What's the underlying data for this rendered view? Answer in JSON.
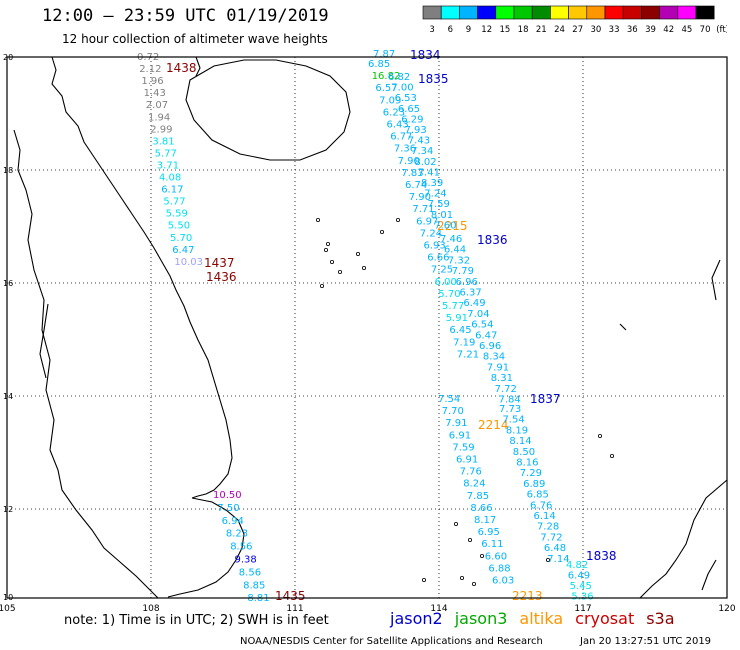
{
  "header": {
    "title": "12:00 – 23:59 UTC 01/19/2019",
    "subtitle": "12 hour collection of altimeter wave heights"
  },
  "legend": {
    "unit": "(ft)",
    "bins": [
      {
        "label": "3",
        "color": "#7f7f7f"
      },
      {
        "label": "6",
        "color": "#00ffff"
      },
      {
        "label": "9",
        "color": "#00b4ff"
      },
      {
        "label": "12",
        "color": "#0000ff"
      },
      {
        "label": "15",
        "color": "#00ff00"
      },
      {
        "label": "18",
        "color": "#00c800"
      },
      {
        "label": "21",
        "color": "#008c00"
      },
      {
        "label": "24",
        "color": "#ffff00"
      },
      {
        "label": "27",
        "color": "#ffc800"
      },
      {
        "label": "30",
        "color": "#ff9600"
      },
      {
        "label": "33",
        "color": "#ff0000"
      },
      {
        "label": "36",
        "color": "#c80000"
      },
      {
        "label": "39",
        "color": "#8c0000"
      },
      {
        "label": "42",
        "color": "#b400b4"
      },
      {
        "label": "45",
        "color": "#ff00ff"
      },
      {
        "label": "70",
        "color": "#000000"
      }
    ]
  },
  "axes": {
    "lon_labels": [
      "105",
      "108",
      "111",
      "114",
      "117",
      "120"
    ],
    "lat_labels": [
      "20",
      "18",
      "16",
      "14",
      "12",
      "10"
    ]
  },
  "tracks": [
    {
      "id": "1438",
      "label": "1438",
      "label_color": "#8b0000",
      "values": [
        {
          "v": "0.72",
          "c": "#808080"
        },
        {
          "v": "2.12",
          "c": "#808080"
        },
        {
          "v": "1.96",
          "c": "#808080"
        },
        {
          "v": "1.43",
          "c": "#808080"
        },
        {
          "v": "2.07",
          "c": "#808080"
        },
        {
          "v": "1.94",
          "c": "#808080"
        },
        {
          "v": "2.99",
          "c": "#808080"
        },
        {
          "v": "3.81",
          "c": "#00e0f0"
        },
        {
          "v": "5.77",
          "c": "#00e0f0"
        },
        {
          "v": "3.71",
          "c": "#00e0f0"
        },
        {
          "v": "4.08",
          "c": "#00e0f0"
        },
        {
          "v": "6.17",
          "c": "#00b4ff"
        },
        {
          "v": "5.77",
          "c": "#00e0f0"
        },
        {
          "v": "5.59",
          "c": "#00e0f0"
        },
        {
          "v": "5.50",
          "c": "#00e0f0"
        },
        {
          "v": "5.70",
          "c": "#00e0f0"
        },
        {
          "v": "6.47",
          "c": "#00b4ff"
        },
        {
          "v": "10.03",
          "c": "#a0a0ff"
        }
      ]
    },
    {
      "id": "1437",
      "label": "1437",
      "label_color": "#8b0000",
      "values": []
    },
    {
      "id": "1436",
      "label": "1436",
      "label_color": "#8b0000",
      "values": []
    },
    {
      "id": "1435",
      "label": "1435",
      "label_color": "#8b0000",
      "values": [
        {
          "v": "10.50",
          "c": "#b400b4"
        },
        {
          "v": "7.50",
          "c": "#00b4ff"
        },
        {
          "v": "6.94",
          "c": "#00b4ff"
        },
        {
          "v": "8.23",
          "c": "#00b4ff"
        },
        {
          "v": "8.56",
          "c": "#00b4ff"
        },
        {
          "v": "9.38",
          "c": "#0000ff"
        },
        {
          "v": "8.56",
          "c": "#00b4ff"
        },
        {
          "v": "8.85",
          "c": "#00b4ff"
        },
        {
          "v": "8.81",
          "c": "#00b4ff"
        }
      ]
    },
    {
      "id": "2215",
      "label": "2215",
      "label_color": "#ff9600",
      "values": [
        {
          "v": "6.85",
          "c": "#00b4ff"
        },
        {
          "v": "16.82",
          "c": "#00c800"
        },
        {
          "v": "6.57",
          "c": "#00b4ff"
        },
        {
          "v": "7.09",
          "c": "#00b4ff"
        },
        {
          "v": "6.23",
          "c": "#00b4ff"
        },
        {
          "v": "6.43",
          "c": "#00b4ff"
        },
        {
          "v": "6.77",
          "c": "#00b4ff"
        },
        {
          "v": "7.36",
          "c": "#00b4ff"
        },
        {
          "v": "7.90",
          "c": "#00b4ff"
        },
        {
          "v": "7.83",
          "c": "#00b4ff"
        },
        {
          "v": "6.74",
          "c": "#00b4ff"
        },
        {
          "v": "7.90",
          "c": "#00b4ff"
        },
        {
          "v": "7.71",
          "c": "#00b4ff"
        },
        {
          "v": "6.97",
          "c": "#00b4ff"
        },
        {
          "v": "7.24",
          "c": "#00b4ff"
        },
        {
          "v": "6.93",
          "c": "#00b4ff"
        },
        {
          "v": "6.66",
          "c": "#00b4ff"
        },
        {
          "v": "7.25",
          "c": "#00b4ff"
        },
        {
          "v": "6.00",
          "c": "#00e0f0"
        },
        {
          "v": "5.70",
          "c": "#00e0f0"
        },
        {
          "v": "5.77",
          "c": "#00e0f0"
        },
        {
          "v": "5.91",
          "c": "#00e0f0"
        },
        {
          "v": "6.45",
          "c": "#00b4ff"
        },
        {
          "v": "7.19",
          "c": "#00b4ff"
        },
        {
          "v": "7.21",
          "c": "#00b4ff"
        }
      ]
    },
    {
      "id": "1834",
      "label": "1834",
      "label_color": "#0000cc",
      "values": [
        {
          "v": "7.87",
          "c": "#00b4ff"
        }
      ]
    },
    {
      "id": "1835",
      "label": "1835",
      "label_color": "#0000cc",
      "values": [
        {
          "v": "6.82",
          "c": "#00b4ff"
        },
        {
          "v": "7.00",
          "c": "#00b4ff"
        },
        {
          "v": "6.53",
          "c": "#00b4ff"
        },
        {
          "v": "6.65",
          "c": "#00b4ff"
        },
        {
          "v": "6.29",
          "c": "#00b4ff"
        },
        {
          "v": "7.93",
          "c": "#00b4ff"
        },
        {
          "v": "7.43",
          "c": "#00b4ff"
        },
        {
          "v": "7.34",
          "c": "#00b4ff"
        },
        {
          "v": "8.02",
          "c": "#00b4ff"
        },
        {
          "v": "7.41",
          "c": "#00b4ff"
        },
        {
          "v": "8.39",
          "c": "#00b4ff"
        },
        {
          "v": "7.24",
          "c": "#00b4ff"
        },
        {
          "v": "7.59",
          "c": "#00b4ff"
        },
        {
          "v": "8.01",
          "c": "#00b4ff"
        },
        {
          "v": "7.60",
          "c": "#00b4ff"
        }
      ]
    },
    {
      "id": "1836",
      "label": "1836",
      "label_color": "#0000cc",
      "values": [
        {
          "v": "7.46",
          "c": "#00b4ff"
        },
        {
          "v": "6.44",
          "c": "#00b4ff"
        },
        {
          "v": "7.32",
          "c": "#00b4ff"
        },
        {
          "v": "7.79",
          "c": "#00b4ff"
        },
        {
          "v": "6.96",
          "c": "#00b4ff"
        },
        {
          "v": "6.37",
          "c": "#00b4ff"
        },
        {
          "v": "6.49",
          "c": "#00b4ff"
        },
        {
          "v": "7.04",
          "c": "#00b4ff"
        },
        {
          "v": "6.54",
          "c": "#00b4ff"
        },
        {
          "v": "6.47",
          "c": "#00b4ff"
        },
        {
          "v": "6.96",
          "c": "#00b4ff"
        },
        {
          "v": "8.34",
          "c": "#00b4ff"
        },
        {
          "v": "7.91",
          "c": "#00b4ff"
        },
        {
          "v": "8.31",
          "c": "#00b4ff"
        },
        {
          "v": "7.72",
          "c": "#00b4ff"
        },
        {
          "v": "7.84",
          "c": "#00b4ff"
        }
      ]
    },
    {
      "id": "2214",
      "label": "2214",
      "label_color": "#ff9600",
      "values": [
        {
          "v": "7.54",
          "c": "#00b4ff"
        },
        {
          "v": "7.70",
          "c": "#00b4ff"
        },
        {
          "v": "7.91",
          "c": "#00b4ff"
        },
        {
          "v": "6.91",
          "c": "#00b4ff"
        },
        {
          "v": "7.59",
          "c": "#00b4ff"
        },
        {
          "v": "6.91",
          "c": "#00b4ff"
        },
        {
          "v": "7.76",
          "c": "#00b4ff"
        },
        {
          "v": "8.24",
          "c": "#00b4ff"
        },
        {
          "v": "7.85",
          "c": "#00b4ff"
        },
        {
          "v": "8.66",
          "c": "#00b4ff"
        },
        {
          "v": "8.17",
          "c": "#00b4ff"
        },
        {
          "v": "6.95",
          "c": "#00b4ff"
        },
        {
          "v": "6.11",
          "c": "#00b4ff"
        },
        {
          "v": "6.60",
          "c": "#00b4ff"
        },
        {
          "v": "6.88",
          "c": "#00b4ff"
        },
        {
          "v": "6.03",
          "c": "#00b4ff"
        }
      ]
    },
    {
      "id": "1837",
      "label": "1837",
      "label_color": "#0000cc",
      "values": [
        {
          "v": "7.73",
          "c": "#00b4ff"
        },
        {
          "v": "7.54",
          "c": "#00b4ff"
        },
        {
          "v": "8.19",
          "c": "#00b4ff"
        },
        {
          "v": "8.14",
          "c": "#00b4ff"
        },
        {
          "v": "8.50",
          "c": "#00b4ff"
        },
        {
          "v": "8.16",
          "c": "#00b4ff"
        },
        {
          "v": "7.29",
          "c": "#00b4ff"
        },
        {
          "v": "6.89",
          "c": "#00b4ff"
        },
        {
          "v": "6.85",
          "c": "#00b4ff"
        },
        {
          "v": "6.76",
          "c": "#00b4ff"
        },
        {
          "v": "6.14",
          "c": "#00b4ff"
        },
        {
          "v": "7.28",
          "c": "#00b4ff"
        },
        {
          "v": "7.72",
          "c": "#00b4ff"
        },
        {
          "v": "6.48",
          "c": "#00b4ff"
        },
        {
          "v": "7.14",
          "c": "#00b4ff"
        }
      ]
    },
    {
      "id": "1838",
      "label": "1838",
      "label_color": "#0000cc",
      "values": [
        {
          "v": "4.82",
          "c": "#00e0f0"
        },
        {
          "v": "6.49",
          "c": "#00b4ff"
        },
        {
          "v": "5.45",
          "c": "#00e0f0"
        },
        {
          "v": "5.36",
          "c": "#00e0f0"
        }
      ]
    },
    {
      "id": "2213",
      "label": "2213",
      "label_color": "#ff9600",
      "values": []
    }
  ],
  "footer": {
    "note": "note:  1) Time is in UTC;  2) SWH is in feet",
    "satellites": [
      {
        "name": "jason2",
        "color": "#0000cc"
      },
      {
        "name": "jason3",
        "color": "#00aa00"
      },
      {
        "name": "altika",
        "color": "#ff9600"
      },
      {
        "name": "cryosat",
        "color": "#cc0000"
      },
      {
        "name": "s3a",
        "color": "#8b0000"
      }
    ],
    "credit_left": "NOAA/NESDIS Center for Satellite Applications and Research",
    "credit_right": "Jan 20 13:27:51 UTC 2019"
  }
}
